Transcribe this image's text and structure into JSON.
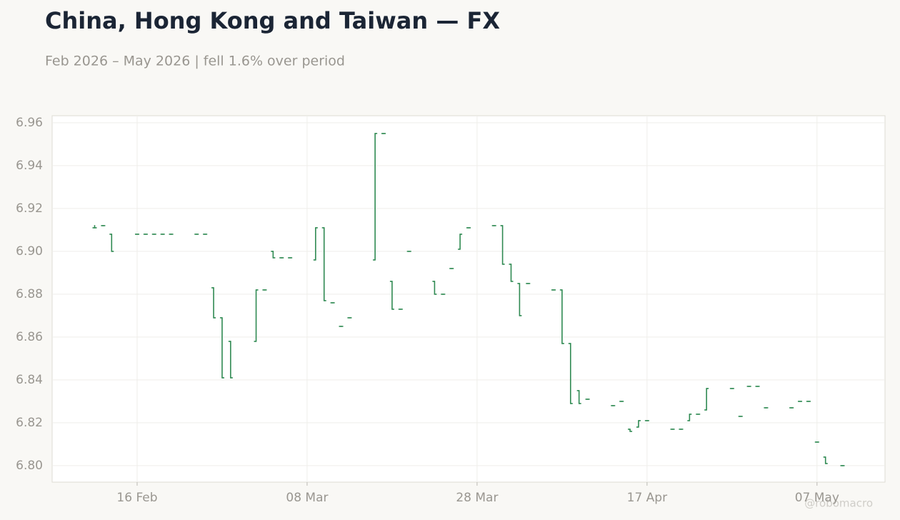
{
  "chart_data": {
    "type": "ohlc",
    "title": "China, Hong Kong and Taiwan — FX",
    "subtitle": "Feb 2026 – May 2026 | fell 1.6% over period",
    "credit": "@robomacro",
    "color": "#2f8a52",
    "grid": true,
    "x": [
      "11 Feb",
      "12 Feb",
      "13 Feb",
      "16 Feb",
      "17 Feb",
      "18 Feb",
      "19 Feb",
      "20 Feb",
      "23 Feb",
      "24 Feb",
      "25 Feb",
      "26 Feb",
      "27 Feb",
      "02 Mar",
      "03 Mar",
      "04 Mar",
      "05 Mar",
      "06 Mar",
      "09 Mar",
      "10 Mar",
      "11 Mar",
      "12 Mar",
      "13 Mar",
      "16 Mar",
      "17 Mar",
      "18 Mar",
      "19 Mar",
      "20 Mar",
      "23 Mar",
      "24 Mar",
      "25 Mar",
      "26 Mar",
      "27 Mar",
      "30 Mar",
      "31 Mar",
      "01 Apr",
      "02 Apr",
      "03 Apr",
      "06 Apr",
      "07 Apr",
      "08 Apr",
      "09 Apr",
      "10 Apr",
      "13 Apr",
      "14 Apr",
      "15 Apr",
      "16 Apr",
      "17 Apr",
      "20 Apr",
      "21 Apr",
      "22 Apr",
      "23 Apr",
      "24 Apr",
      "27 Apr",
      "28 Apr",
      "29 Apr",
      "30 Apr",
      "01 May",
      "04 May",
      "05 May",
      "06 May",
      "07 May",
      "08 May",
      "10 May"
    ],
    "open": [
      6.911,
      6.912,
      6.908,
      6.908,
      6.908,
      6.908,
      6.908,
      6.908,
      6.908,
      6.908,
      6.883,
      6.869,
      6.858,
      6.858,
      6.882,
      6.9,
      6.897,
      6.897,
      6.896,
      6.911,
      6.876,
      6.865,
      6.869,
      6.896,
      6.955,
      6.886,
      6.873,
      6.9,
      6.886,
      6.88,
      6.892,
      6.901,
      6.911,
      6.912,
      6.912,
      6.894,
      6.885,
      6.885,
      6.882,
      6.882,
      6.857,
      6.835,
      6.831,
      6.828,
      6.83,
      6.817,
      6.818,
      6.821,
      6.817,
      6.817,
      6.821,
      6.824,
      6.826,
      6.836,
      6.823,
      6.837,
      6.837,
      6.827,
      6.827,
      6.83,
      6.83,
      6.811,
      6.804,
      6.8
    ],
    "high": [
      6.912,
      6.912,
      6.908,
      6.908,
      6.908,
      6.908,
      6.908,
      6.908,
      6.908,
      6.908,
      6.883,
      6.869,
      6.858,
      6.882,
      6.882,
      6.9,
      6.897,
      6.897,
      6.911,
      6.911,
      6.876,
      6.865,
      6.869,
      6.955,
      6.955,
      6.886,
      6.873,
      6.9,
      6.886,
      6.88,
      6.892,
      6.908,
      6.911,
      6.912,
      6.912,
      6.894,
      6.885,
      6.885,
      6.882,
      6.882,
      6.857,
      6.835,
      6.831,
      6.828,
      6.83,
      6.817,
      6.821,
      6.821,
      6.817,
      6.817,
      6.824,
      6.824,
      6.836,
      6.836,
      6.823,
      6.837,
      6.837,
      6.827,
      6.827,
      6.83,
      6.83,
      6.811,
      6.804,
      6.8
    ],
    "low": [
      6.911,
      6.912,
      6.9,
      6.908,
      6.908,
      6.908,
      6.908,
      6.908,
      6.908,
      6.908,
      6.869,
      6.841,
      6.841,
      6.858,
      6.882,
      6.897,
      6.897,
      6.897,
      6.896,
      6.877,
      6.876,
      6.865,
      6.869,
      6.896,
      6.955,
      6.873,
      6.873,
      6.9,
      6.88,
      6.88,
      6.892,
      6.901,
      6.911,
      6.912,
      6.894,
      6.886,
      6.87,
      6.885,
      6.882,
      6.857,
      6.829,
      6.829,
      6.831,
      6.828,
      6.83,
      6.816,
      6.818,
      6.821,
      6.817,
      6.817,
      6.821,
      6.824,
      6.826,
      6.836,
      6.823,
      6.837,
      6.837,
      6.827,
      6.827,
      6.83,
      6.83,
      6.811,
      6.801,
      6.8
    ],
    "close": [
      6.911,
      6.912,
      6.9,
      6.908,
      6.908,
      6.908,
      6.908,
      6.908,
      6.908,
      6.908,
      6.869,
      6.841,
      6.841,
      6.882,
      6.882,
      6.897,
      6.897,
      6.897,
      6.911,
      6.877,
      6.876,
      6.865,
      6.869,
      6.955,
      6.955,
      6.873,
      6.873,
      6.9,
      6.88,
      6.88,
      6.892,
      6.908,
      6.911,
      6.912,
      6.894,
      6.886,
      6.87,
      6.885,
      6.882,
      6.857,
      6.829,
      6.829,
      6.831,
      6.828,
      6.83,
      6.816,
      6.821,
      6.821,
      6.817,
      6.817,
      6.824,
      6.824,
      6.836,
      6.836,
      6.823,
      6.837,
      6.837,
      6.827,
      6.827,
      6.83,
      6.83,
      6.811,
      6.801,
      6.8
    ],
    "xlim": [
      "06 Feb",
      "15 May"
    ],
    "xticks": [
      "16 Feb",
      "08 Mar",
      "28 Mar",
      "17 Apr",
      "07 May"
    ],
    "ylim": [
      6.7923,
      6.9633
    ],
    "yticks": [
      {
        "value": 6.8,
        "label": "6.80"
      },
      6.82,
      6.84,
      6.86,
      6.88,
      {
        "value": 6.9,
        "label": "6.90"
      },
      6.92,
      6.94,
      6.96
    ]
  }
}
